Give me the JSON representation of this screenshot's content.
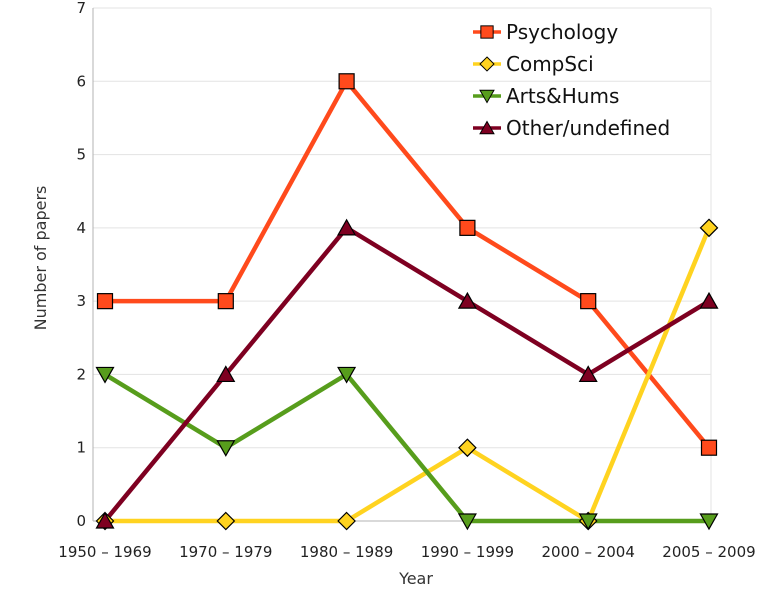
{
  "chart_data": {
    "type": "line",
    "xlabel": "Year",
    "ylabel": "Number of papers",
    "categories": [
      "1950 – 1969",
      "1970 – 1979",
      "1980 – 1989",
      "1990 – 1999",
      "2000 – 2004",
      "2005 – 2009"
    ],
    "ylim": [
      0,
      7
    ],
    "yticks": [
      0,
      1,
      2,
      3,
      4,
      5,
      6,
      7
    ],
    "grid": true,
    "legend_position": "top-right",
    "series": [
      {
        "name": "Psychology",
        "color": "#ff4a1c",
        "marker": "square",
        "values": [
          3,
          3,
          6,
          4,
          3,
          1
        ]
      },
      {
        "name": "CompSci",
        "color": "#ffd320",
        "marker": "diamond",
        "values": [
          0,
          0,
          0,
          1,
          0,
          4
        ]
      },
      {
        "name": "Arts&Hums",
        "color": "#579d1c",
        "marker": "triangle-down",
        "values": [
          2,
          1,
          2,
          0,
          0,
          0
        ]
      },
      {
        "name": "Other/undefined",
        "color": "#7e0021",
        "marker": "triangle-up",
        "values": [
          0,
          2,
          4,
          3,
          2,
          3
        ]
      }
    ]
  }
}
